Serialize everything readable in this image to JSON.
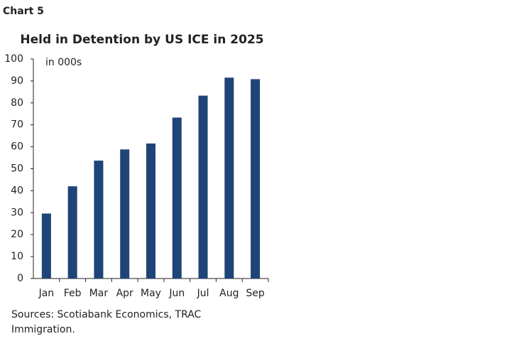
{
  "chart_label": "Chart 5",
  "chart_data": {
    "type": "bar",
    "title": "Held in Detention by US ICE in 2025",
    "unit_note": "in 000s",
    "categories": [
      "Jan",
      "Feb",
      "Mar",
      "Apr",
      "May",
      "Jun",
      "Jul",
      "Aug",
      "Sep"
    ],
    "values": [
      29.6,
      42,
      53.7,
      58.8,
      61.5,
      73.3,
      83.3,
      91.5,
      90.8
    ],
    "color": "#1f4478",
    "ylim": [
      0,
      100
    ],
    "yticks": [
      0,
      10,
      20,
      30,
      40,
      50,
      60,
      70,
      80,
      90,
      100
    ],
    "grid": false
  },
  "source": [
    "Sources: Scotiabank Economics, TRAC",
    "Immigration."
  ]
}
